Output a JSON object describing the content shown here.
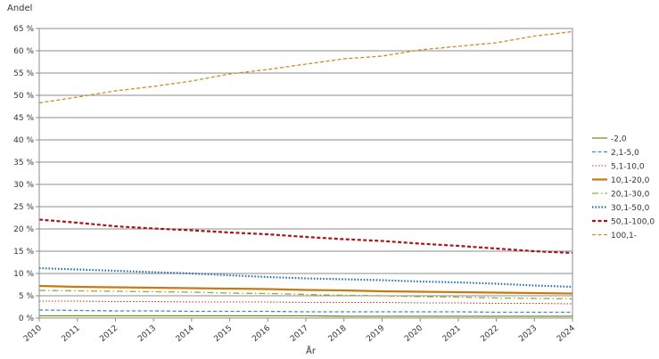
{
  "chart_data": {
    "type": "line",
    "ylabel": "Andel",
    "xlabel": "År",
    "x": [
      2010,
      2011,
      2012,
      2013,
      2014,
      2015,
      2016,
      2017,
      2018,
      2019,
      2020,
      2021,
      2022,
      2023,
      2024
    ],
    "xtick_labels": [
      "2010",
      "2011",
      "2012",
      "2013",
      "2014",
      "2015",
      "2016",
      "2017",
      "2018",
      "2019",
      "2020",
      "2021",
      "2022",
      "2023",
      "2024"
    ],
    "ylim": [
      0,
      65
    ],
    "ytick_values": [
      0,
      5,
      10,
      15,
      20,
      25,
      30,
      35,
      40,
      45,
      50,
      55,
      60,
      65
    ],
    "ytick_labels": [
      "0 %",
      "5 %",
      "10 %",
      "15 %",
      "20 %",
      "25 %",
      "30 %",
      "35 %",
      "40 %",
      "45 %",
      "50 %",
      "55 %",
      "60 %",
      "65 %"
    ],
    "grid": "horizontal",
    "legend_position": "right",
    "series": [
      {
        "name": "-2,0",
        "color": "#7a8a1f",
        "dash": "solid",
        "width": 1.3,
        "values": [
          0.5,
          0.5,
          0.5,
          0.5,
          0.5,
          0.5,
          0.5,
          0.5,
          0.4,
          0.4,
          0.4,
          0.4,
          0.4,
          0.4,
          0.4
        ]
      },
      {
        "name": "2,1-5,0",
        "color": "#3b8fc4",
        "dash": "dash",
        "width": 1.3,
        "values": [
          1.8,
          1.7,
          1.6,
          1.6,
          1.5,
          1.5,
          1.5,
          1.4,
          1.4,
          1.4,
          1.4,
          1.4,
          1.3,
          1.3,
          1.3
        ]
      },
      {
        "name": "5,1-10,0",
        "color": "#c0392b",
        "dash": "dot",
        "width": 1.1,
        "values": [
          3.8,
          3.8,
          3.7,
          3.7,
          3.6,
          3.6,
          3.6,
          3.5,
          3.5,
          3.5,
          3.4,
          3.4,
          3.3,
          3.3,
          3.2
        ]
      },
      {
        "name": "10,1-20,0",
        "color": "#c87a10",
        "dash": "solid",
        "width": 2.2,
        "values": [
          7.2,
          7.0,
          6.9,
          6.8,
          6.7,
          6.6,
          6.5,
          6.3,
          6.2,
          6.0,
          5.9,
          5.8,
          5.7,
          5.6,
          5.5
        ]
      },
      {
        "name": "20,1-30,0",
        "color": "#9aa83a",
        "dash": "dashdot",
        "width": 1.3,
        "values": [
          6.2,
          6.1,
          6.0,
          5.9,
          5.8,
          5.6,
          5.5,
          5.3,
          5.1,
          5.0,
          4.8,
          4.7,
          4.5,
          4.4,
          4.3
        ]
      },
      {
        "name": "30,1-50,0",
        "color": "#1f6fb2",
        "dash": "dot",
        "width": 2.2,
        "values": [
          11.2,
          10.9,
          10.6,
          10.3,
          10.0,
          9.6,
          9.2,
          8.9,
          8.7,
          8.5,
          8.2,
          8.0,
          7.7,
          7.3,
          7.0
        ]
      },
      {
        "name": "50,1-100,0",
        "color": "#a8141b",
        "dash": "dash",
        "width": 2.2,
        "values": [
          22.1,
          21.4,
          20.6,
          20.1,
          19.7,
          19.2,
          18.8,
          18.2,
          17.7,
          17.3,
          16.7,
          16.2,
          15.6,
          15.0,
          14.6
        ]
      },
      {
        "name": "100,1-",
        "color": "#d08a28",
        "dash": "dash",
        "width": 1.3,
        "values": [
          48.3,
          49.6,
          51.0,
          52.0,
          53.2,
          54.8,
          55.8,
          57.0,
          58.2,
          58.8,
          60.2,
          61.0,
          61.8,
          63.3,
          64.3
        ]
      }
    ]
  }
}
